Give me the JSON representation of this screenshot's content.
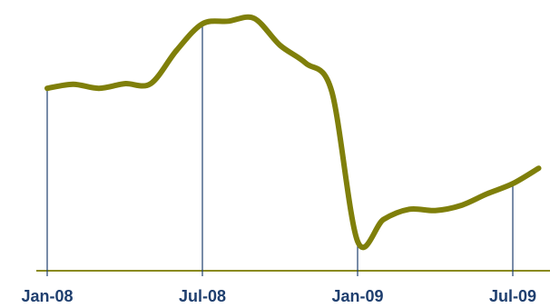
{
  "colors": {
    "line": "#7f7f0a",
    "axis": "#8a8a1e",
    "drop_line": "#1f3f6f",
    "tick_label": "#1f3f6f"
  },
  "chart_data": {
    "type": "line",
    "title": "",
    "xlabel": "",
    "ylabel": "",
    "x_ticks": [
      "Jan-08",
      "Jul-08",
      "Jan-09",
      "Jul-09"
    ],
    "drop_lines_at": [
      "Jan-08",
      "Jul-08",
      "Jan-09",
      "Jul-09"
    ],
    "grid": false,
    "legend": "none",
    "x_range": [
      "Jan-08",
      "Aug-09"
    ],
    "ylim": [
      0,
      100
    ],
    "series": [
      {
        "values": [
          {
            "x": "Jan-08",
            "y": 71.2
          },
          {
            "x": "Feb-08",
            "y": 72.8
          },
          {
            "x": "Mar-08",
            "y": 71.2
          },
          {
            "x": "Apr-08",
            "y": 73.0
          },
          {
            "x": "May-08",
            "y": 73.0
          },
          {
            "x": "Jun-08",
            "y": 86.0
          },
          {
            "x": "Jul-08",
            "y": 96.4
          },
          {
            "x": "Aug-08",
            "y": 97.4
          },
          {
            "x": "Sep-08",
            "y": 98.5
          },
          {
            "x": "Oct-08",
            "y": 88.0
          },
          {
            "x": "Nov-08",
            "y": 81.0
          },
          {
            "x": "Dec-08",
            "y": 70.0
          },
          {
            "x": "Jan-09",
            "y": 11.5
          },
          {
            "x": "Feb-09",
            "y": 20.0
          },
          {
            "x": "Mar-09",
            "y": 24.0
          },
          {
            "x": "Apr-09",
            "y": 23.5
          },
          {
            "x": "May-09",
            "y": 25.5
          },
          {
            "x": "Jun-09",
            "y": 30.0
          },
          {
            "x": "Jul-09",
            "y": 34.0
          },
          {
            "x": "Aug-09",
            "y": 40.0
          }
        ]
      }
    ]
  }
}
